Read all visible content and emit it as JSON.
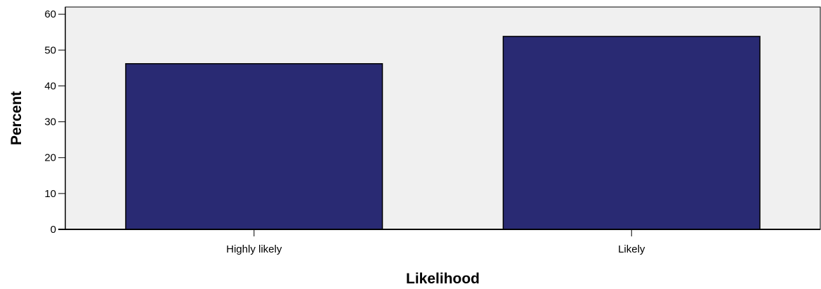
{
  "chart_data": {
    "type": "bar",
    "categories": [
      "Highly likely",
      "Likely"
    ],
    "values": [
      46.2,
      53.8
    ],
    "xlabel": "Likelihood",
    "ylabel": "Percent",
    "ylim": [
      0,
      62
    ],
    "yticks": [
      0,
      10,
      20,
      30,
      40,
      50,
      60
    ],
    "grid": false,
    "legend": "none",
    "colors": {
      "bar_fill": "#292a73",
      "bar_stroke": "#000000",
      "plot_background": "#f0f0f0",
      "axis": "#000000"
    }
  }
}
